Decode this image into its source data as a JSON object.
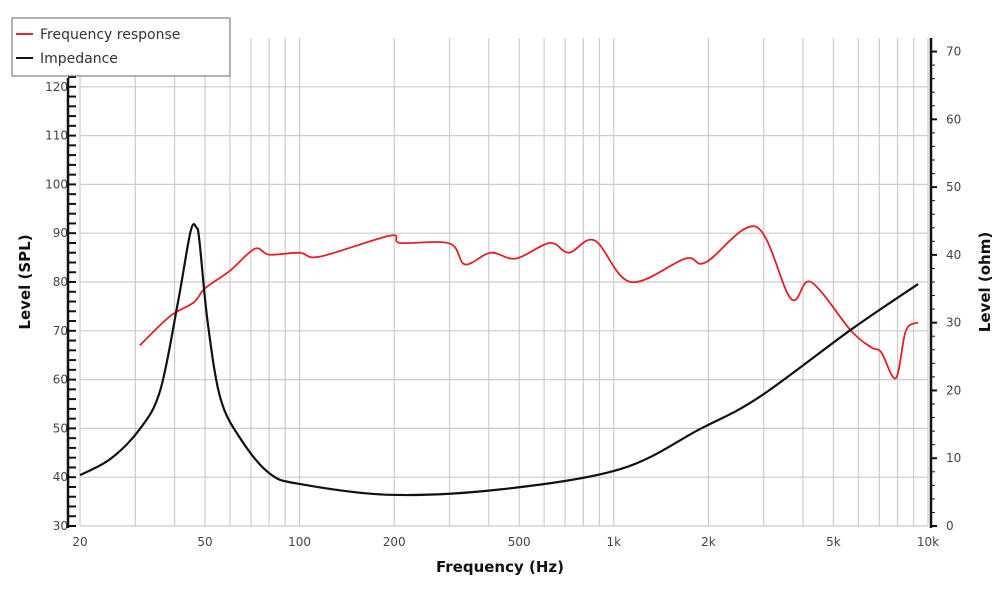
{
  "chart_data": {
    "type": "line",
    "title": "",
    "xlabel": "Frequency (Hz)",
    "ylabel": "Level (SPL)",
    "y2label": "Level (ohm)",
    "xscale": "log",
    "xlim": [
      20,
      10000
    ],
    "ylim": [
      30,
      130
    ],
    "y2lim": [
      0,
      72
    ],
    "grid": true,
    "legend_position": "top-left",
    "x_ticks": [
      {
        "v": 20,
        "l": "20"
      },
      {
        "v": 50,
        "l": "50"
      },
      {
        "v": 100,
        "l": "100"
      },
      {
        "v": 200,
        "l": "200"
      },
      {
        "v": 500,
        "l": "500"
      },
      {
        "v": 1000,
        "l": "1k"
      },
      {
        "v": 2000,
        "l": "2k"
      },
      {
        "v": 5000,
        "l": "5k"
      },
      {
        "v": 10000,
        "l": "10k"
      }
    ],
    "y_ticks": [
      30,
      40,
      50,
      60,
      70,
      80,
      90,
      100,
      110,
      120
    ],
    "y2_ticks": [
      0,
      10,
      20,
      30,
      40,
      50,
      60,
      70
    ],
    "series": [
      {
        "name": "Frequency response",
        "axis": "left",
        "color": "#e0202a",
        "x": [
          31,
          38.7,
          46,
          50,
          60,
          72,
          80,
          100,
          116,
          194,
          209,
          300,
          336,
          405,
          488,
          625,
          720,
          870,
          1130,
          1690,
          1960,
          2840,
          3660,
          4240,
          5690,
          6600,
          7100,
          7900,
          8500,
          9300
        ],
        "y": [
          67,
          73,
          75.8,
          78.7,
          82.3,
          86.8,
          85.6,
          86,
          85.2,
          89.5,
          88,
          87.9,
          83.6,
          86,
          84.8,
          88,
          86,
          88.5,
          80,
          84.8,
          84,
          91.3,
          76.6,
          80,
          70,
          66.6,
          65.6,
          60.3,
          70,
          71.7
        ]
      },
      {
        "name": "Impedance",
        "axis": "right",
        "color": "#111111",
        "x": [
          20,
          25,
          31,
          36,
          41,
          45,
          47,
          48,
          51,
          56,
          65,
          80,
          100,
          194,
          436,
          1050,
          1880,
          2900,
          5700,
          9300
        ],
        "y": [
          7.5,
          9.9,
          14.3,
          20,
          33,
          43.5,
          44,
          42,
          30,
          18.8,
          12.8,
          7.8,
          6.2,
          4.6,
          5.4,
          8.4,
          14.3,
          19,
          29,
          35.7
        ]
      }
    ]
  }
}
